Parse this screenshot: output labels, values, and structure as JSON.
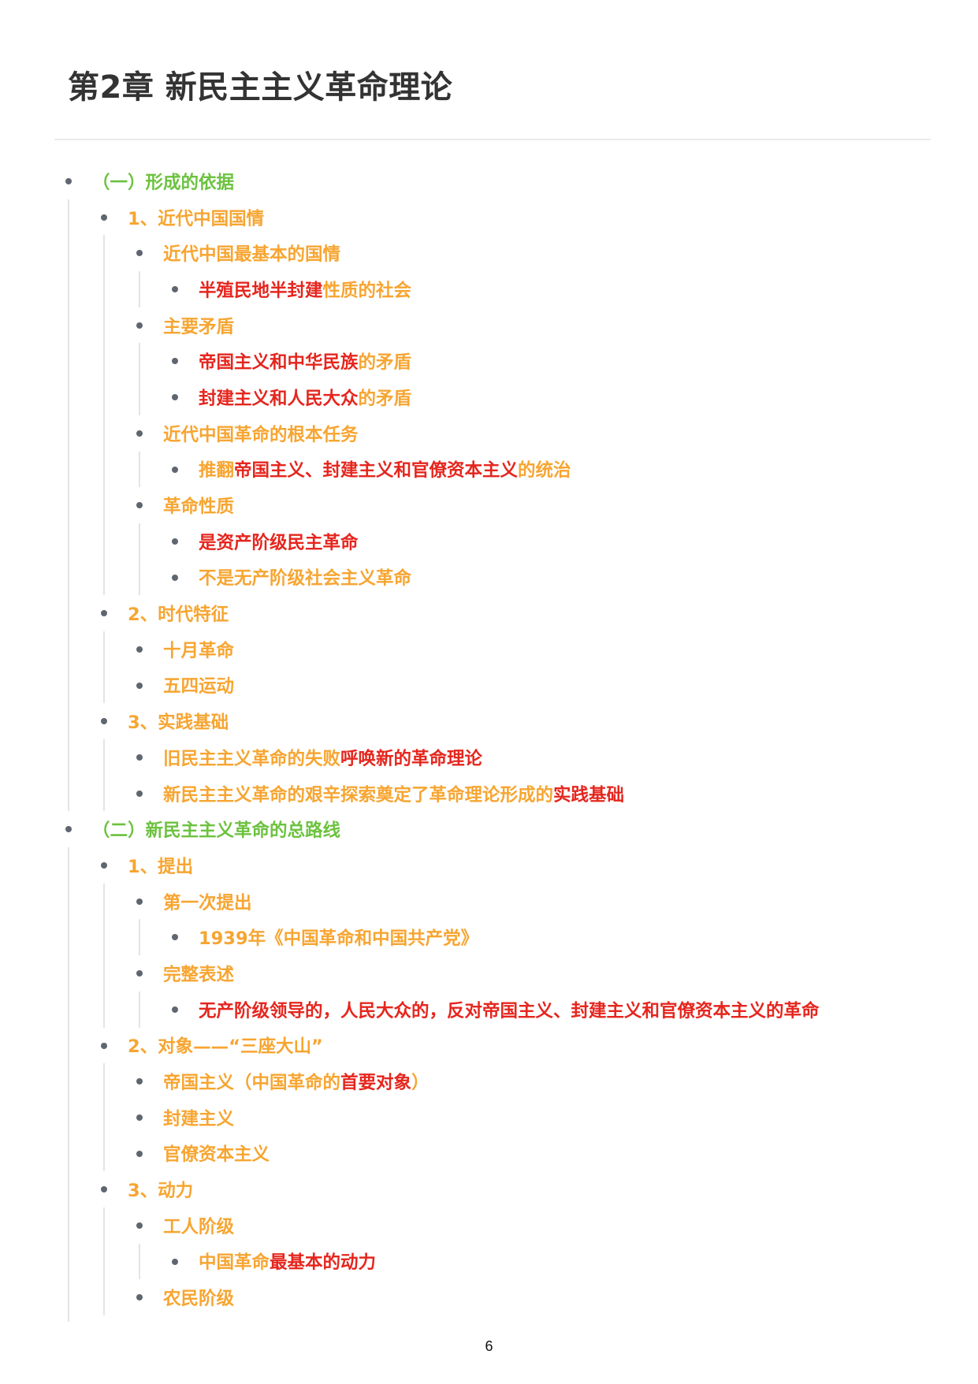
{
  "title": "第2章 新民主主义革命理论",
  "page_number": "6",
  "colors": {
    "level1": "#6cc23f",
    "level2": "#f7a531",
    "highlight": "#e5261e",
    "text": "#333333"
  },
  "outline": [
    {
      "text": [
        {
          "t": "（一）形成的依据"
        }
      ],
      "children": [
        {
          "text": [
            {
              "t": "1、近代中国国情"
            }
          ],
          "children": [
            {
              "bold": true,
              "text": [
                {
                  "t": "近代中国最基本的国情"
                }
              ],
              "children": [
                {
                  "text": [
                    {
                      "t": "半殖民地半封建",
                      "red": true
                    },
                    {
                      "t": "性质的社会"
                    }
                  ]
                }
              ]
            },
            {
              "bold": true,
              "text": [
                {
                  "t": "主要矛盾"
                }
              ],
              "children": [
                {
                  "text": [
                    {
                      "t": "帝国主义和中华民族",
                      "red": true
                    },
                    {
                      "t": "的矛盾"
                    }
                  ]
                },
                {
                  "text": [
                    {
                      "t": "封建主义和人民大众",
                      "red": true
                    },
                    {
                      "t": "的矛盾"
                    }
                  ]
                }
              ]
            },
            {
              "bold": true,
              "text": [
                {
                  "t": "近代中国革命的根本任务"
                }
              ],
              "children": [
                {
                  "text": [
                    {
                      "t": "推翻"
                    },
                    {
                      "t": "帝国主义、封建主义和官僚资本主义",
                      "red": true
                    },
                    {
                      "t": "的统治"
                    }
                  ]
                }
              ]
            },
            {
              "bold": true,
              "text": [
                {
                  "t": "革命性质"
                }
              ],
              "children": [
                {
                  "text": [
                    {
                      "t": "是资产阶级民主革命",
                      "red": true
                    }
                  ]
                },
                {
                  "text": [
                    {
                      "t": "不是无产阶级社会主义革命"
                    }
                  ]
                }
              ]
            }
          ]
        },
        {
          "text": [
            {
              "t": "2、时代特征"
            }
          ],
          "children": [
            {
              "text": [
                {
                  "t": "十月革命"
                }
              ]
            },
            {
              "text": [
                {
                  "t": "五四运动"
                }
              ]
            }
          ]
        },
        {
          "text": [
            {
              "t": "3、实践基础"
            }
          ],
          "children": [
            {
              "text": [
                {
                  "t": "旧民主主义革命的失败"
                },
                {
                  "t": "呼唤新的革命理论",
                  "red": true
                }
              ]
            },
            {
              "text": [
                {
                  "t": "新民主主义革命的艰辛探索奠定了革命理论形成的"
                },
                {
                  "t": "实践基础",
                  "red": true
                }
              ]
            }
          ]
        }
      ]
    },
    {
      "text": [
        {
          "t": "（二）新民主主义革命的总路线"
        }
      ],
      "children": [
        {
          "text": [
            {
              "t": "1、提出"
            }
          ],
          "children": [
            {
              "bold": true,
              "text": [
                {
                  "t": "第一次提出"
                }
              ],
              "children": [
                {
                  "text": [
                    {
                      "t": "1939年《中国革命和中国共产党》"
                    }
                  ]
                }
              ]
            },
            {
              "bold": true,
              "text": [
                {
                  "t": "完整表述"
                }
              ],
              "children": [
                {
                  "text": [
                    {
                      "t": "无产阶级领导的，人民大众的，反对帝国主义、封建主义和官僚资本主义的革命",
                      "red": true
                    }
                  ]
                }
              ]
            }
          ]
        },
        {
          "text": [
            {
              "t": "2、对象——“三座大山”"
            }
          ],
          "children": [
            {
              "text": [
                {
                  "t": "帝国主义（中国革命的"
                },
                {
                  "t": "首要对象",
                  "red": true
                },
                {
                  "t": "）"
                }
              ]
            },
            {
              "text": [
                {
                  "t": "封建主义"
                }
              ]
            },
            {
              "text": [
                {
                  "t": "官僚资本主义"
                }
              ]
            }
          ]
        },
        {
          "text": [
            {
              "t": "3、动力"
            }
          ],
          "children": [
            {
              "bold": true,
              "text": [
                {
                  "t": "工人阶级"
                }
              ],
              "children": [
                {
                  "text": [
                    {
                      "t": "中国革命"
                    },
                    {
                      "t": "最基本的动力",
                      "red": true
                    }
                  ]
                }
              ]
            },
            {
              "bold": true,
              "text": [
                {
                  "t": "农民阶级"
                }
              ]
            }
          ]
        }
      ]
    }
  ]
}
